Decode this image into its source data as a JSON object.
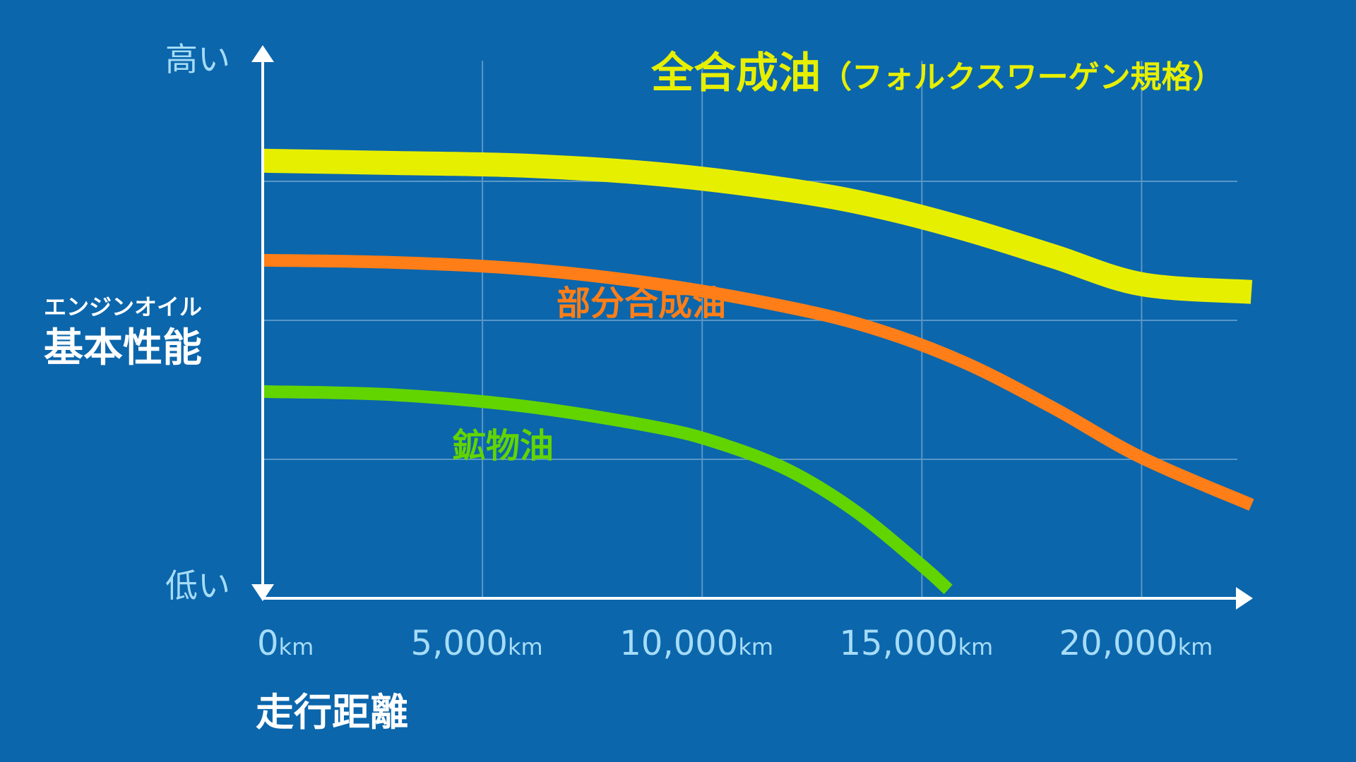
{
  "chart_data": {
    "type": "line",
    "xlabel": "走行距離",
    "ylabel_top": "エンジンオイル",
    "ylabel_main": "基本性能",
    "y_high_label": "高い",
    "y_low_label": "低い",
    "x_unit": "km",
    "xlim": [
      0,
      22500
    ],
    "ylim": [
      0,
      100
    ],
    "x_ticks": [
      {
        "value": 0,
        "label": "0"
      },
      {
        "value": 5000,
        "label": "5,000"
      },
      {
        "value": 10000,
        "label": "10,000"
      },
      {
        "value": 15000,
        "label": "15,000"
      },
      {
        "value": 20000,
        "label": "20,000"
      }
    ],
    "y_gridlines": [
      25,
      50,
      75
    ],
    "series": [
      {
        "name": "全合成油",
        "name_suffix": "（フォルクスワーゲン規格）",
        "color": "#e7ef00",
        "x": [
          0,
          3000,
          6000,
          9000,
          12000,
          14000,
          16000,
          18000,
          20000,
          22500
        ],
        "y": [
          78.7,
          78.3,
          77.8,
          76.3,
          73.4,
          70.5,
          66.4,
          61.5,
          56.5,
          55.1
        ]
      },
      {
        "name": "部分合成油",
        "color": "#ff7e17",
        "x": [
          0,
          3000,
          6000,
          9000,
          12000,
          14000,
          16000,
          18000,
          20000,
          22500
        ],
        "y": [
          60.8,
          60.4,
          59.2,
          56.5,
          52.3,
          48.3,
          42.3,
          34.2,
          25.3,
          16.8
        ]
      },
      {
        "name": "鉱物油",
        "color": "#62d400",
        "x": [
          0,
          3000,
          6000,
          9000,
          10500,
          12000,
          13500,
          15000,
          15600
        ],
        "y": [
          37.2,
          36.6,
          34.5,
          30.7,
          27.6,
          22.9,
          15.6,
          5.9,
          1.6
        ]
      }
    ]
  }
}
